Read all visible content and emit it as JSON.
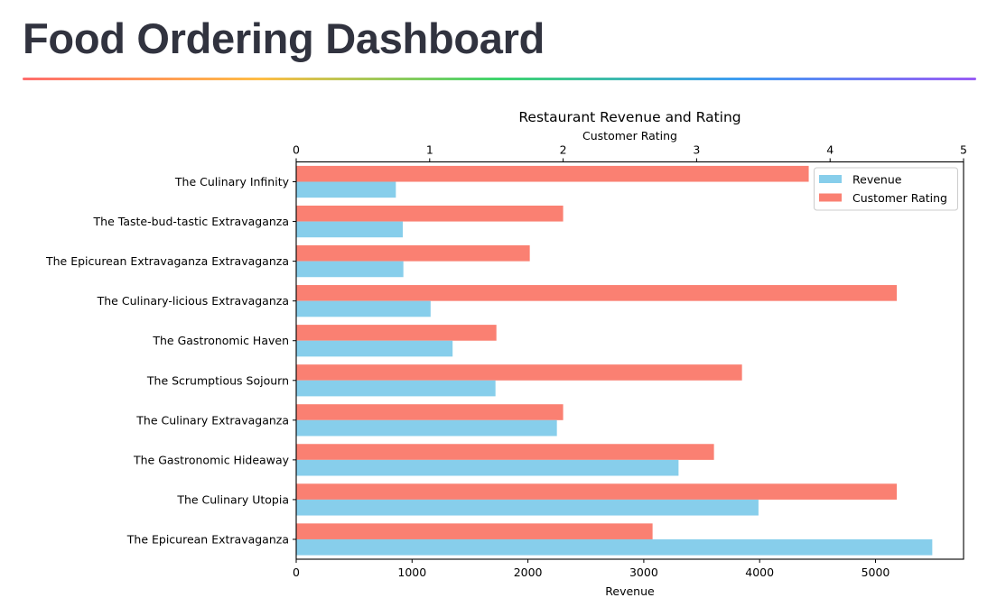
{
  "page": {
    "title": "Food Ordering Dashboard"
  },
  "colors": {
    "revenue": "#87ceeb",
    "rating": "#fa8072",
    "title_rule_gradient": [
      "#ff6c6c",
      "#ffbd45",
      "#3dd56d",
      "#3d9df3",
      "#9a5cf5"
    ]
  },
  "chart_data": {
    "type": "bar",
    "orientation": "horizontal",
    "title": "Restaurant Revenue and Rating",
    "xlabel": "Revenue",
    "x2label": "Customer Rating",
    "categories": [
      "The Culinary Infinity",
      "The Taste-bud-tastic Extravaganza",
      "The Epicurean Extravaganza Extravaganza",
      "The Culinary-licious Extravaganza",
      "The Gastronomic Haven",
      "The Scrumptious Sojourn",
      "The Culinary Extravaganza",
      "The Gastronomic Hideaway",
      "The Culinary Utopia",
      "The Epicurean Extravaganza"
    ],
    "series": [
      {
        "name": "Revenue",
        "axis": "bottom",
        "color": "#87ceeb",
        "values": [
          860,
          920,
          925,
          1160,
          1350,
          1720,
          2250,
          3300,
          3990,
          5490
        ]
      },
      {
        "name": "Customer Rating",
        "axis": "top",
        "color": "#fa8072",
        "values": [
          3.84,
          2.0,
          1.75,
          4.5,
          1.5,
          3.34,
          2.0,
          3.13,
          4.5,
          2.67
        ]
      }
    ],
    "xlim": [
      0,
      5760
    ],
    "x_ticks": [
      0,
      1000,
      2000,
      3000,
      4000,
      5000
    ],
    "x2lim": [
      0,
      5
    ],
    "x2_ticks": [
      0,
      1,
      2,
      3,
      4,
      5
    ],
    "legend": "top-right",
    "grid": false
  }
}
